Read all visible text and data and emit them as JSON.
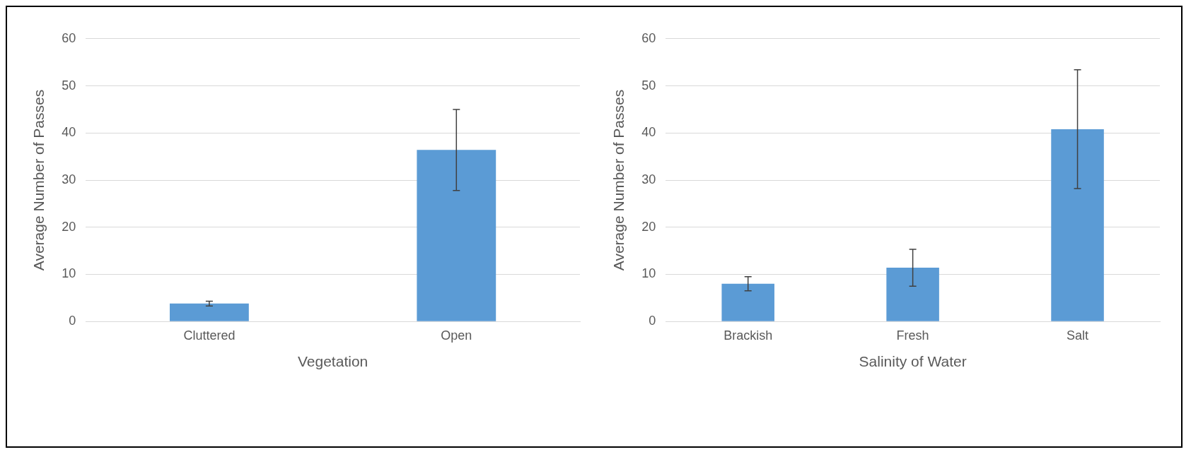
{
  "chart_data": [
    {
      "type": "bar",
      "xlabel": "Vegetation",
      "ylabel": "Average Number of Passes",
      "categories": [
        "Cluttered",
        "Open"
      ],
      "values": [
        3.8,
        36.4
      ],
      "errors": [
        0.5,
        8.6
      ],
      "color": "#5b9bd5",
      "ylim": [
        0,
        60
      ],
      "yticks": [
        0,
        10,
        20,
        30,
        40,
        50,
        60
      ],
      "grid": "y",
      "legend": false
    },
    {
      "type": "bar",
      "xlabel": "Salinity of Water",
      "ylabel": "Average Number of Passes",
      "categories": [
        "Brackish",
        "Fresh",
        "Salt"
      ],
      "values": [
        8.0,
        11.4,
        40.8
      ],
      "errors": [
        1.5,
        3.9,
        12.6
      ],
      "color": "#5b9bd5",
      "ylim": [
        0,
        60
      ],
      "yticks": [
        0,
        10,
        20,
        30,
        40,
        50,
        60
      ],
      "grid": "y",
      "legend": false
    }
  ]
}
